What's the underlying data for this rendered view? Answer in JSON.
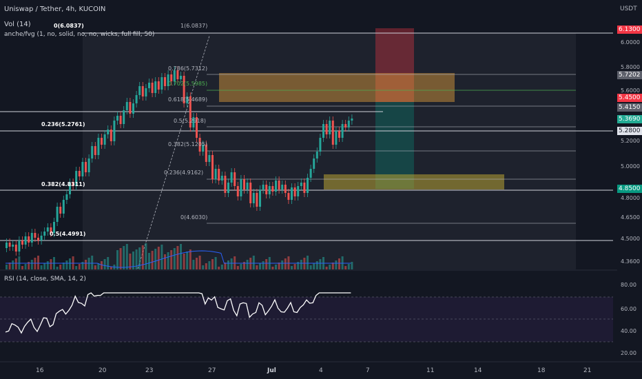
{
  "header": {
    "title": "Uniswap / Tether, 4h, KUCOIN",
    "indicator_vol": "Vol (14)",
    "indicator_fvg": "anche/fvg (1, no, solid, no, no, wicks, full fill, 50)",
    "rsi_title": "RSI (14, close, SMA, 14, 2)",
    "currency": "USDT"
  },
  "price_axis": {
    "ticks": [
      "6.0000",
      "5.8000",
      "5.6000",
      "5.2000",
      "5.0000",
      "4.8000",
      "4.6500",
      "4.5000",
      "4.3600"
    ],
    "labels": [
      {
        "text": "6.1300",
        "color": "#f23645"
      },
      {
        "text": "5.7202",
        "color": "#5d606b"
      },
      {
        "text": "5.4500",
        "color": "#f23645"
      },
      {
        "text": "5.4150",
        "color": "#5d606b"
      },
      {
        "text": "5.3690",
        "color": "#22ab94"
      },
      {
        "text": "5.2800",
        "color": "#e0e3eb"
      },
      {
        "text": "4.8500",
        "color": "#089981"
      }
    ]
  },
  "rsi_axis": {
    "ticks": [
      "80.00",
      "60.00",
      "40.00",
      "20.00"
    ]
  },
  "time_axis": {
    "labels": [
      "16",
      "20",
      "23",
      "27",
      "Jul",
      "4",
      "7",
      "11",
      "14",
      "18",
      "21"
    ]
  },
  "fib_main": [
    {
      "text": "0(6.0837)"
    },
    {
      "text": "0.236(5.2761)"
    },
    {
      "text": "0.382(4.8311)"
    },
    {
      "text": "0.5(4.4991)"
    }
  ],
  "fib_second": [
    {
      "text": "1(6.0837)",
      "color": "#b2b5be"
    },
    {
      "text": "0.786(5.7312)",
      "color": "#b2b5be"
    },
    {
      "text": "0.702(5.5985)",
      "color": "#4caf50"
    },
    {
      "text": "0.618(5.4689)",
      "color": "#b2b5be"
    },
    {
      "text": "0.5(5.2918)",
      "color": "#b2b5be"
    },
    {
      "text": "0.382(5.1205)",
      "color": "#b2b5be"
    },
    {
      "text": "0.236(4.9162)",
      "color": "#b2b5be"
    },
    {
      "text": "0(4.6030)",
      "color": "#b2b5be"
    }
  ],
  "colors": {
    "up": "#26a69a",
    "down": "#ef5350",
    "rsi_line": "#ffffff",
    "vol_ma": "#2962ff",
    "background": "#131722"
  }
}
